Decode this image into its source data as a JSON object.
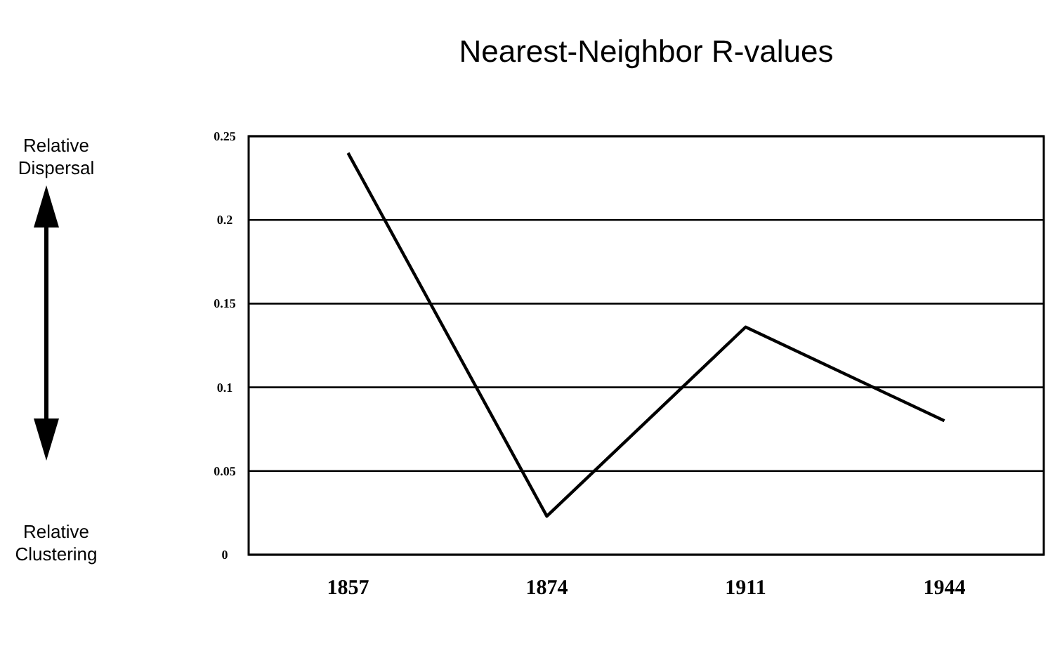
{
  "chart_data": {
    "type": "line",
    "title": "Nearest-Neighbor R-values",
    "categories": [
      "1857",
      "1874",
      "1911",
      "1944"
    ],
    "series": [
      {
        "color": "#000000",
        "values": [
          0.24,
          0.023,
          0.136,
          0.08
        ]
      }
    ],
    "ylim": [
      0,
      0.25
    ],
    "yticks": [
      0,
      0.05,
      0.1,
      0.15,
      0.2,
      0.25
    ],
    "grid": "y",
    "marker": "none",
    "line_style": "solid",
    "annotations": [
      "Relative Dispersal",
      "Relative Clustering"
    ]
  }
}
